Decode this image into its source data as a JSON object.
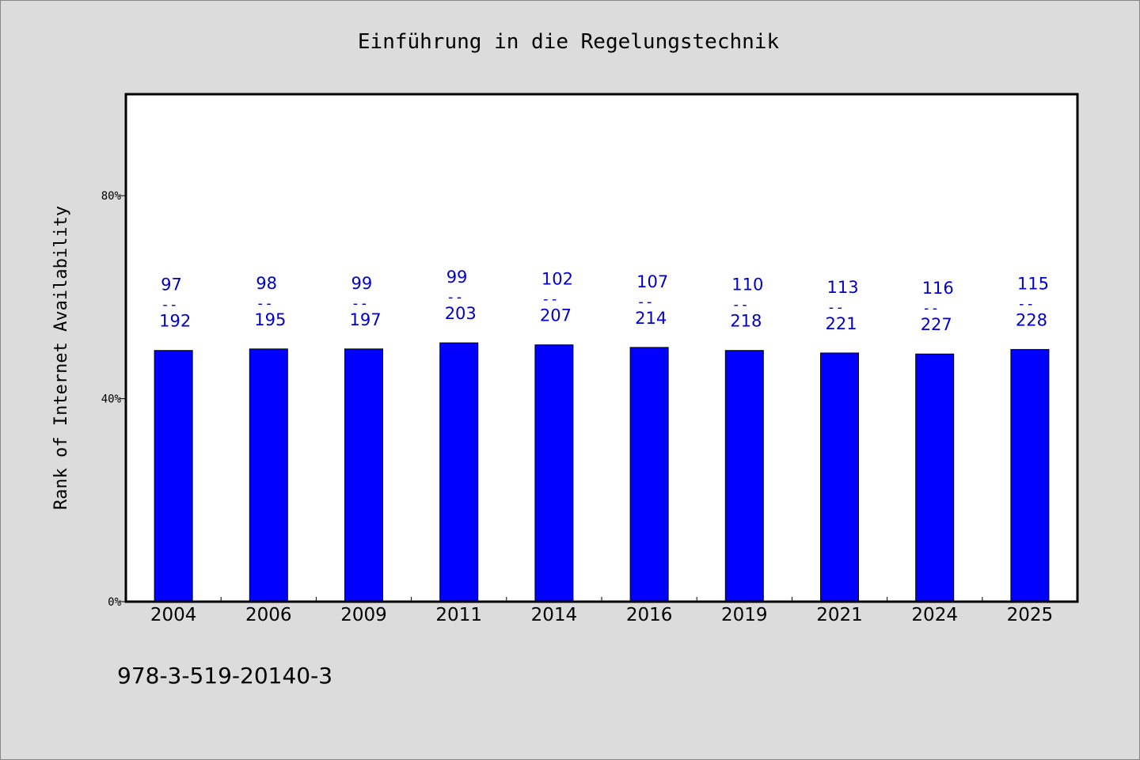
{
  "colors": {
    "background": "#dcdcdc",
    "plot_background": "#ffffff",
    "bar_fill": "#0000ff",
    "label_color": "#0000cc",
    "text": "#000000"
  },
  "footer": {
    "isbn": "978-3-519-20140-3"
  },
  "chart_data": {
    "type": "bar",
    "title": "Einführung in die Regelungstechnik",
    "xlabel": "",
    "ylabel": "Rank of Internet Availability",
    "ylim": [
      0,
      100
    ],
    "yticks": [
      0,
      40,
      80
    ],
    "ytick_labels": [
      "0%",
      "40%",
      "80%"
    ],
    "grid": false,
    "categories": [
      "2004",
      "2006",
      "2009",
      "2011",
      "2014",
      "2016",
      "2019",
      "2021",
      "2024",
      "2025"
    ],
    "values": [
      49.5,
      49.8,
      49.8,
      51.0,
      50.6,
      50.1,
      49.5,
      49.0,
      48.8,
      49.7
    ],
    "data_labels": [
      {
        "top": "97",
        "sep": "--",
        "bottom": "192"
      },
      {
        "top": "98",
        "sep": "--",
        "bottom": "195"
      },
      {
        "top": "99",
        "sep": "--",
        "bottom": "197"
      },
      {
        "top": "99",
        "sep": "--",
        "bottom": "203"
      },
      {
        "top": "102",
        "sep": "--",
        "bottom": "207"
      },
      {
        "top": "107",
        "sep": "--",
        "bottom": "214"
      },
      {
        "top": "110",
        "sep": "--",
        "bottom": "218"
      },
      {
        "top": "113",
        "sep": "--",
        "bottom": "221"
      },
      {
        "top": "116",
        "sep": "--",
        "bottom": "227"
      },
      {
        "top": "115",
        "sep": "--",
        "bottom": "228"
      }
    ]
  }
}
